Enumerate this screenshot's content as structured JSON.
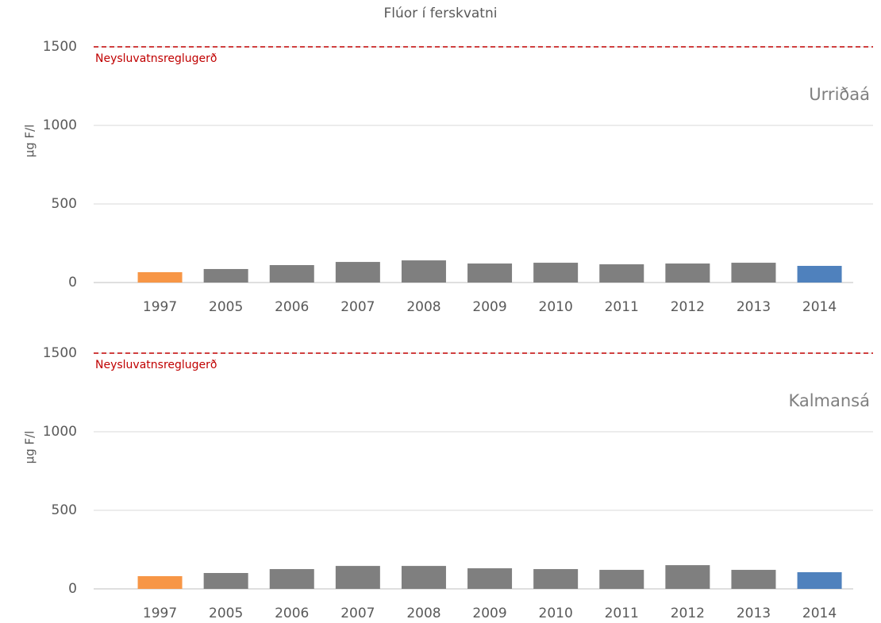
{
  "chart_data": [
    {
      "type": "bar",
      "title": "Flúor í ferskvatni",
      "ylabel": "µg F/l",
      "annotation": "Urriðaá",
      "categories": [
        "1997",
        "2005",
        "2006",
        "2007",
        "2008",
        "2009",
        "2010",
        "2011",
        "2012",
        "2013",
        "2014"
      ],
      "values": [
        66,
        86,
        111,
        131,
        141,
        121,
        126,
        116,
        121,
        126,
        106
      ],
      "colors": [
        "#f79646",
        "#7f7f7f",
        "#7f7f7f",
        "#7f7f7f",
        "#7f7f7f",
        "#7f7f7f",
        "#7f7f7f",
        "#7f7f7f",
        "#7f7f7f",
        "#7f7f7f",
        "#4f81bd"
      ],
      "ylim": [
        0,
        1500
      ],
      "yticks": [
        0,
        500,
        1000,
        1500
      ],
      "grid": true,
      "reference_line": {
        "value": 1500,
        "label": "Neysluvatnsreglugerð",
        "color": "#c00000"
      }
    },
    {
      "type": "bar",
      "ylabel": "µg F/l",
      "annotation": "Kalmansá",
      "categories": [
        "1997",
        "2005",
        "2006",
        "2007",
        "2008",
        "2009",
        "2010",
        "2011",
        "2012",
        "2013",
        "2014"
      ],
      "values": [
        81,
        101,
        126,
        146,
        146,
        131,
        126,
        121,
        151,
        121,
        106
      ],
      "colors": [
        "#f79646",
        "#7f7f7f",
        "#7f7f7f",
        "#7f7f7f",
        "#7f7f7f",
        "#7f7f7f",
        "#7f7f7f",
        "#7f7f7f",
        "#7f7f7f",
        "#7f7f7f",
        "#4f81bd"
      ],
      "ylim": [
        0,
        1500
      ],
      "yticks": [
        0,
        500,
        1000,
        1500
      ],
      "grid": true,
      "reference_line": {
        "value": 1500,
        "label": "Neysluvatnsreglugerð",
        "color": "#c00000"
      }
    }
  ]
}
